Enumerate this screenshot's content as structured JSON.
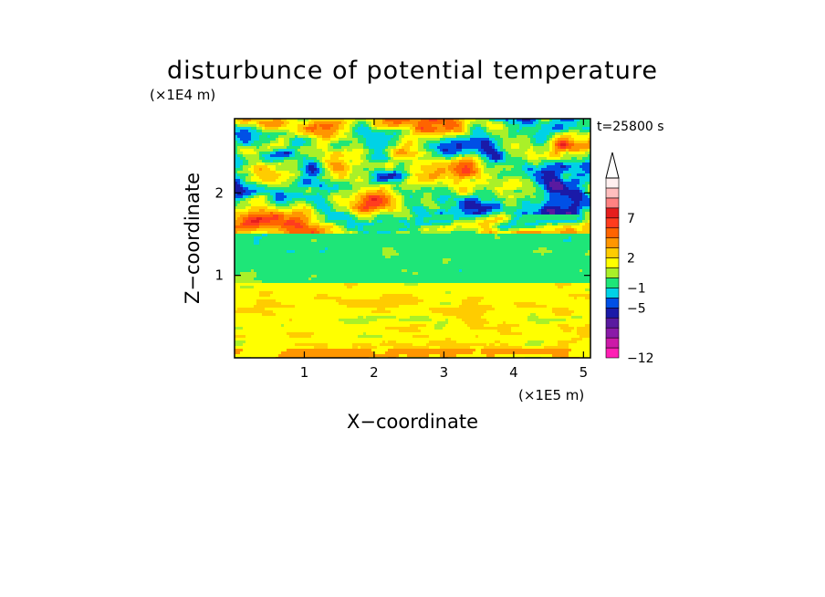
{
  "chart_data": {
    "type": "heatmap",
    "title": "disturbunce of potential temperature",
    "time_label": "t=25800 s",
    "xlabel": "X−coordinate",
    "ylabel": "Z−coordinate",
    "x_unit": "(×1E5 m)",
    "y_unit": "(×1E4 m)",
    "xlim": [
      0,
      5.1
    ],
    "ylim": [
      0,
      2.9
    ],
    "x_ticks": [
      "1",
      "2",
      "3",
      "4",
      "5"
    ],
    "y_ticks": [
      "1",
      "2"
    ],
    "colorbar": {
      "colors": [
        "#ff1fb4",
        "#cc1aa8",
        "#8a1aa8",
        "#5a1aa0",
        "#1a1aa8",
        "#0050e6",
        "#00d2e6",
        "#1ee678",
        "#aaf028",
        "#ffff00",
        "#ffcc00",
        "#ff9600",
        "#ff6400",
        "#ff3c1e",
        "#e61e1e",
        "#ff8282",
        "#ffbebe",
        "#fff0f0"
      ],
      "tick_labels": [
        "−12",
        "−5",
        "−1",
        "2",
        "7"
      ],
      "extend": "max"
    },
    "field_description_levels": {
      "bands_z": [
        {
          "z": [
            0.0,
            0.9
          ],
          "dominant": "yellow"
        },
        {
          "z": [
            0.9,
            1.55
          ],
          "dominant": "green"
        },
        {
          "z": [
            1.55,
            2.9
          ],
          "dominant": "mixed red/blue"
        }
      ]
    }
  }
}
